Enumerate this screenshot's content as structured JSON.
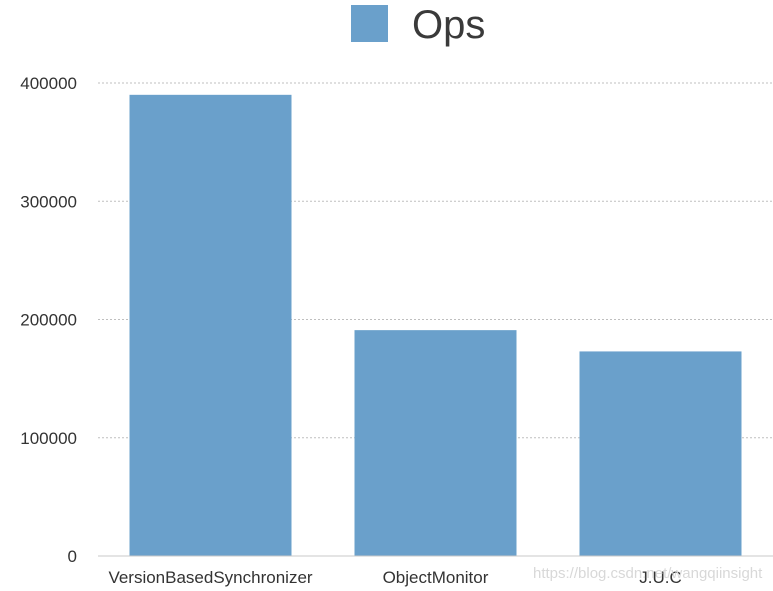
{
  "chart_data": {
    "type": "bar",
    "categories": [
      "VersionBasedSynchronizer",
      "ObjectMonitor",
      "J.U.C"
    ],
    "series": [
      {
        "name": "Ops",
        "values": [
          390000,
          191000,
          173000
        ]
      }
    ],
    "ylim": [
      0,
      400000
    ],
    "yticks": [
      "0",
      "100000",
      "200000",
      "300000",
      "400000"
    ],
    "grid": true,
    "legend_position": "top-center",
    "bar_color": "#6aa0cb",
    "grid_color": "#bfbfbf"
  },
  "watermark": "https://blog.csdn.net/wangqiinsight"
}
